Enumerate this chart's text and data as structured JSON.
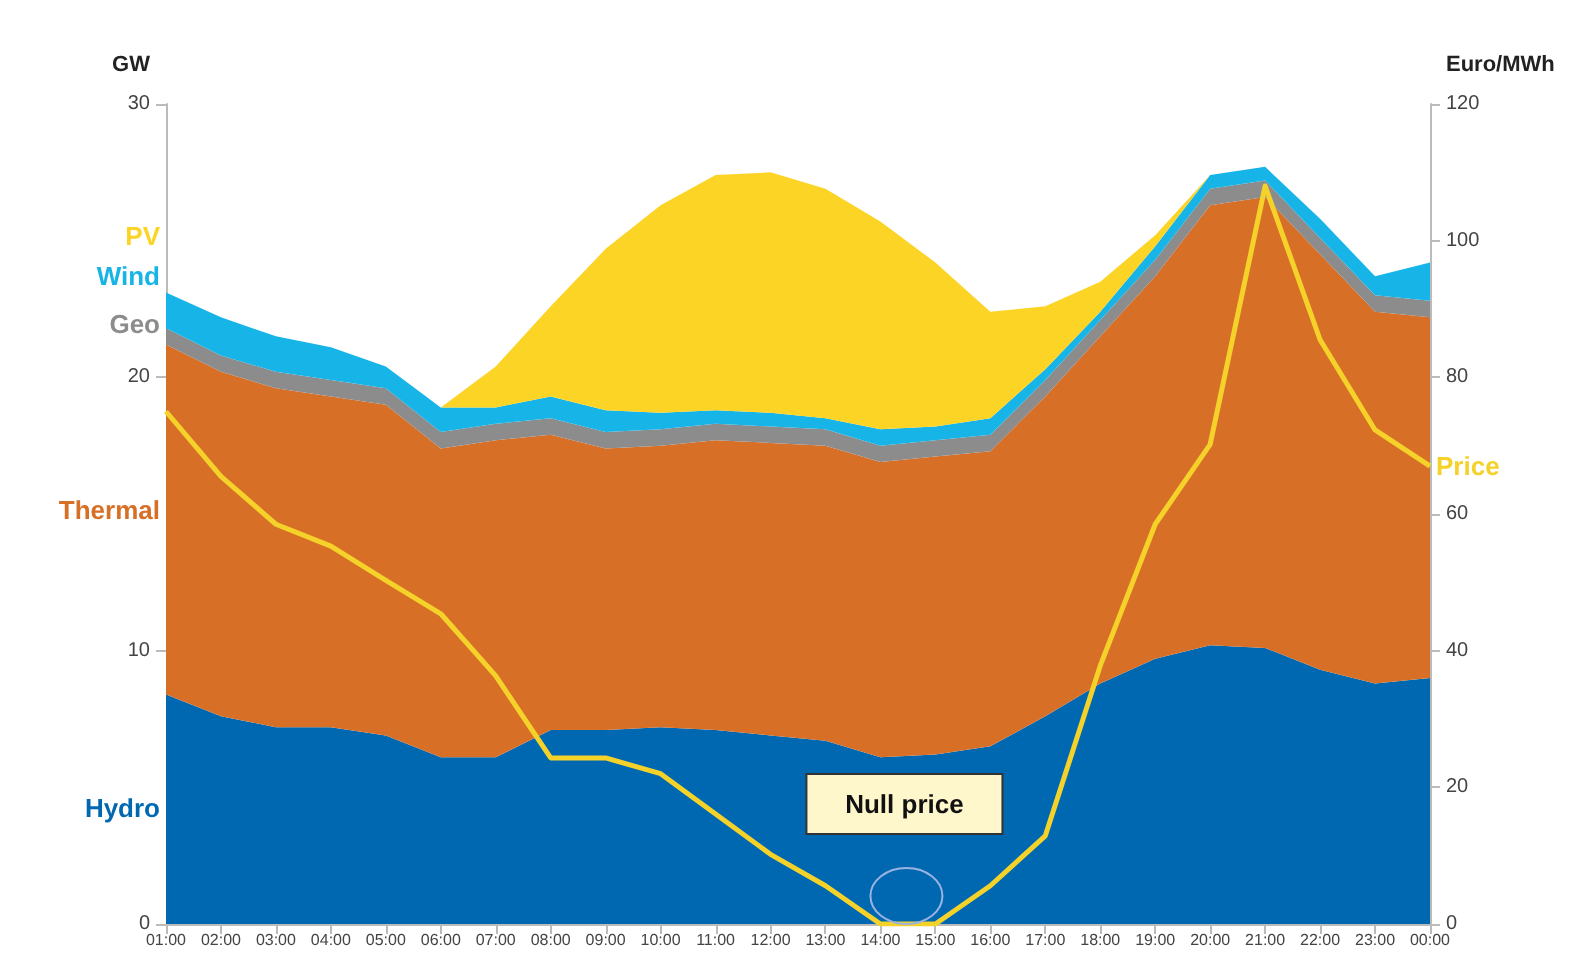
{
  "chart_data": {
    "type": "area",
    "stacked": true,
    "ylabel": "GW",
    "y2label": "Euro/MWh",
    "categories": [
      "01:00",
      "02:00",
      "03:00",
      "04:00",
      "05:00",
      "06:00",
      "07:00",
      "08:00",
      "09:00",
      "10:00",
      "11:00",
      "12:00",
      "13:00",
      "14:00",
      "15:00",
      "16:00",
      "17:00",
      "18:00",
      "19:00",
      "20:00",
      "21:00",
      "22:00",
      "23:00",
      "00:00"
    ],
    "series": [
      {
        "name": "Hydro",
        "color": "#0068b0",
        "values": [
          8.4,
          7.6,
          7.2,
          7.2,
          6.9,
          6.1,
          6.1,
          7.1,
          7.1,
          7.2,
          7.1,
          6.9,
          6.7,
          6.1,
          6.2,
          6.5,
          7.6,
          8.8,
          9.7,
          10.2,
          10.1,
          9.3,
          8.8,
          9.0
        ]
      },
      {
        "name": "Thermal",
        "color": "#d86f27",
        "values": [
          12.8,
          12.6,
          12.4,
          12.1,
          12.1,
          11.3,
          11.6,
          10.8,
          10.3,
          10.3,
          10.6,
          10.7,
          10.8,
          10.8,
          10.9,
          10.8,
          11.7,
          12.7,
          14.0,
          16.1,
          16.5,
          15.2,
          13.6,
          13.2
        ]
      },
      {
        "name": "Geo",
        "color": "#8c8c8c",
        "values": [
          0.6,
          0.6,
          0.6,
          0.6,
          0.6,
          0.6,
          0.6,
          0.6,
          0.6,
          0.6,
          0.6,
          0.6,
          0.6,
          0.6,
          0.6,
          0.6,
          0.6,
          0.6,
          0.6,
          0.6,
          0.6,
          0.6,
          0.6,
          0.6
        ]
      },
      {
        "name": "Wind",
        "color": "#17b4e8",
        "values": [
          1.3,
          1.4,
          1.3,
          1.2,
          0.8,
          0.9,
          0.6,
          0.8,
          0.8,
          0.6,
          0.5,
          0.5,
          0.4,
          0.6,
          0.5,
          0.6,
          0.4,
          0.3,
          0.5,
          0.5,
          0.5,
          0.7,
          0.7,
          1.4
        ]
      },
      {
        "name": "PV",
        "color": "#fcd425",
        "values": [
          0,
          0,
          0,
          0,
          0,
          0,
          1.5,
          3.3,
          5.9,
          7.6,
          8.6,
          8.8,
          8.4,
          7.6,
          6.0,
          3.9,
          2.3,
          1.1,
          0.4,
          0,
          0,
          0,
          0,
          0
        ]
      },
      {
        "name": "Price",
        "type": "line",
        "axis": "y2",
        "color": "#f5d22a",
        "values": [
          75,
          65.5,
          58.5,
          55.3,
          50.3,
          45.4,
          36.3,
          24.3,
          24.3,
          22,
          16.1,
          10.2,
          5.6,
          0,
          0,
          5.6,
          12.9,
          37.8,
          58.5,
          70.2,
          108,
          85.5,
          72.3,
          67
        ]
      }
    ],
    "ylim": [
      0,
      30
    ],
    "yticks": [
      0,
      10,
      20,
      30
    ],
    "y2lim": [
      0,
      120
    ],
    "y2ticks": [
      0,
      20,
      40,
      60,
      80,
      100,
      120
    ],
    "annotations": [
      "Null price"
    ],
    "legend": false,
    "grid": false,
    "marker": "none"
  }
}
